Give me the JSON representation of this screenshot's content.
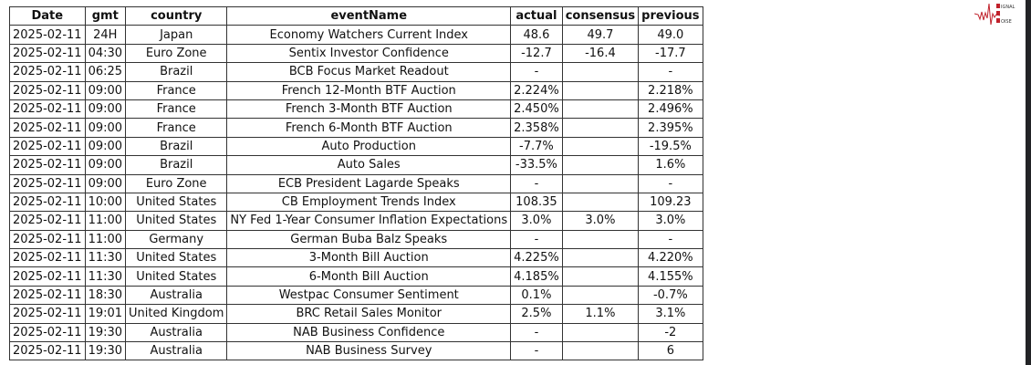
{
  "logo": {
    "text": "SIGNAL 2 NOISE",
    "color": "#c0202a"
  },
  "columns": [
    "Date",
    "gmt",
    "country",
    "eventName",
    "actual",
    "consensus",
    "previous"
  ],
  "rows": [
    [
      "2025-02-11",
      "24H",
      "Japan",
      "Economy Watchers Current Index",
      "48.6",
      "49.7",
      "49.0"
    ],
    [
      "2025-02-11",
      "04:30",
      "Euro Zone",
      "Sentix Investor Confidence",
      "-12.7",
      "-16.4",
      "-17.7"
    ],
    [
      "2025-02-11",
      "06:25",
      "Brazil",
      "BCB Focus Market Readout",
      "-",
      "",
      "-"
    ],
    [
      "2025-02-11",
      "09:00",
      "France",
      "French 12-Month BTF Auction",
      "2.224%",
      "",
      "2.218%"
    ],
    [
      "2025-02-11",
      "09:00",
      "France",
      "French 3-Month BTF Auction",
      "2.450%",
      "",
      "2.496%"
    ],
    [
      "2025-02-11",
      "09:00",
      "France",
      "French 6-Month BTF Auction",
      "2.358%",
      "",
      "2.395%"
    ],
    [
      "2025-02-11",
      "09:00",
      "Brazil",
      "Auto Production",
      "-7.7%",
      "",
      "-19.5%"
    ],
    [
      "2025-02-11",
      "09:00",
      "Brazil",
      "Auto Sales",
      "-33.5%",
      "",
      "1.6%"
    ],
    [
      "2025-02-11",
      "09:00",
      "Euro Zone",
      "ECB President Lagarde Speaks",
      "-",
      "",
      "-"
    ],
    [
      "2025-02-11",
      "10:00",
      "United States",
      "CB Employment Trends Index",
      "108.35",
      "",
      "109.23"
    ],
    [
      "2025-02-11",
      "11:00",
      "United States",
      "NY Fed 1-Year Consumer Inflation Expectations",
      "3.0%",
      "3.0%",
      "3.0%"
    ],
    [
      "2025-02-11",
      "11:00",
      "Germany",
      "German Buba Balz Speaks",
      "-",
      "",
      "-"
    ],
    [
      "2025-02-11",
      "11:30",
      "United States",
      "3-Month Bill Auction",
      "4.225%",
      "",
      "4.220%"
    ],
    [
      "2025-02-11",
      "11:30",
      "United States",
      "6-Month Bill Auction",
      "4.185%",
      "",
      "4.155%"
    ],
    [
      "2025-02-11",
      "18:30",
      "Australia",
      "Westpac Consumer Sentiment",
      "0.1%",
      "",
      "-0.7%"
    ],
    [
      "2025-02-11",
      "19:01",
      "United Kingdom",
      "BRC Retail Sales Monitor",
      "2.5%",
      "1.1%",
      "3.1%"
    ],
    [
      "2025-02-11",
      "19:30",
      "Australia",
      "NAB Business Confidence",
      "-",
      "",
      "-2"
    ],
    [
      "2025-02-11",
      "19:30",
      "Australia",
      "NAB Business Survey",
      "-",
      "",
      "6"
    ]
  ]
}
